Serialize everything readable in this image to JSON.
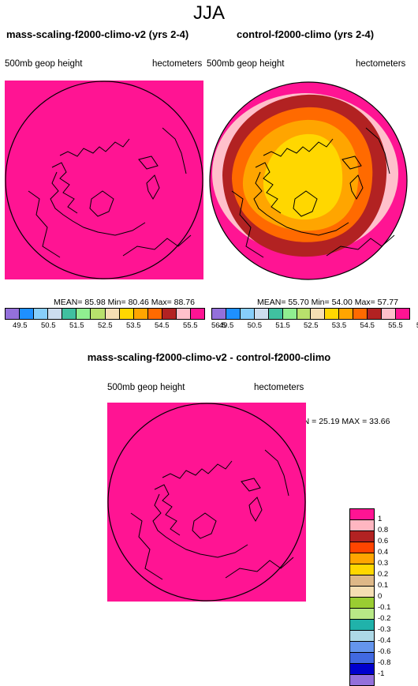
{
  "season": "JJA",
  "panel_left": {
    "title": "mass-scaling-f2000-climo-v2 (yrs 2-4)",
    "field": "500mb geop height",
    "units": "hectometers",
    "stats": {
      "mean": "85.98",
      "min": "80.46",
      "max": "88.76"
    }
  },
  "panel_right": {
    "title": "control-f2000-climo (yrs 2-4)",
    "field": "500mb geop height",
    "units": "hectometers",
    "stats": {
      "mean": "55.70",
      "min": "54.00",
      "max": "57.77"
    }
  },
  "panel_diff": {
    "title": "mass-scaling-f2000-climo-v2 - control-f2000-climo",
    "field": "500mb geop height",
    "units": "hectometers",
    "stats": {
      "min": "25.19",
      "max": "33.66"
    }
  },
  "labels": {
    "mean": "MEAN=",
    "min": "Min=",
    "max": "Max=",
    "min_eq": "MIN =",
    "max_eq": "MAX ="
  },
  "top_colorbar": {
    "labels": [
      "49.5",
      "50.5",
      "51.5",
      "52.5",
      "53.5",
      "54.5",
      "55.5",
      "56.5"
    ],
    "colors": [
      "#9370db",
      "#1e90ff",
      "#87cefa",
      "#ccddee",
      "#40c0a0",
      "#90ee90",
      "#b8e06c",
      "#f5deb3",
      "#ffd700",
      "#ffa500",
      "#ff6a00",
      "#b22222",
      "#ffc0cb",
      "#ff1493"
    ]
  },
  "diff_colorbar": {
    "labels": [
      "1",
      "0.8",
      "0.6",
      "0.4",
      "0.3",
      "0.2",
      "0.1",
      "0",
      "-0.1",
      "-0.2",
      "-0.3",
      "-0.4",
      "-0.6",
      "-0.8",
      "-1"
    ],
    "colors": [
      "#ff1493",
      "#ffb6c1",
      "#b22222",
      "#ff4500",
      "#ffa500",
      "#ffd700",
      "#deb887",
      "#f5deb3",
      "#9acd32",
      "#b8e986",
      "#20b2aa",
      "#add8e6",
      "#6495ed",
      "#4169e1",
      "#0000cd",
      "#9370db"
    ]
  },
  "map_colors": {
    "fill": "#ff1493",
    "ring1": "#ffc0cb",
    "ring2": "#b22222",
    "ring3": "#ff6a00",
    "ring4": "#ffa500",
    "core": "#ffd700",
    "coast": "#000000"
  }
}
